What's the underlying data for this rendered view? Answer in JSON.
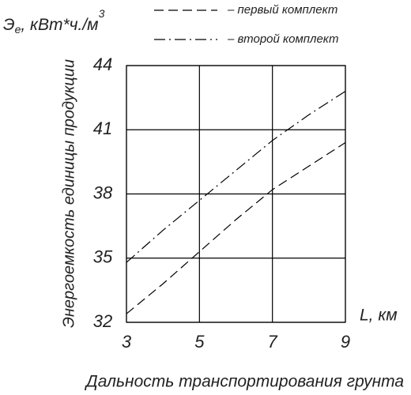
{
  "chart_data": {
    "type": "line",
    "unit_label": {
      "main": "Э",
      "sub": "е",
      "rest": ", кВт*ч./м",
      "sup": "3"
    },
    "y_label": "Энергоемкость единицы продукции",
    "x_label": "Дальность транспортирования грунта",
    "x_unit": "L, км",
    "x": [
      3,
      4,
      5,
      6,
      7,
      8,
      9
    ],
    "series": [
      {
        "name": "– первый комплект",
        "color": "#000000",
        "dash": "dashed",
        "values": [
          32.4,
          33.8,
          35.3,
          36.8,
          38.2,
          39.3,
          40.4
        ]
      },
      {
        "name": "– второй комплект",
        "color": "#000000",
        "dash": "dashdot",
        "values": [
          34.8,
          36.3,
          37.7,
          39.1,
          40.5,
          41.7,
          42.8
        ]
      }
    ],
    "xlim": [
      3,
      9
    ],
    "ylim": [
      32,
      44
    ],
    "xticks": [
      3,
      5,
      7,
      9
    ],
    "yticks": [
      32,
      35,
      38,
      41,
      44
    ],
    "grid": true
  }
}
